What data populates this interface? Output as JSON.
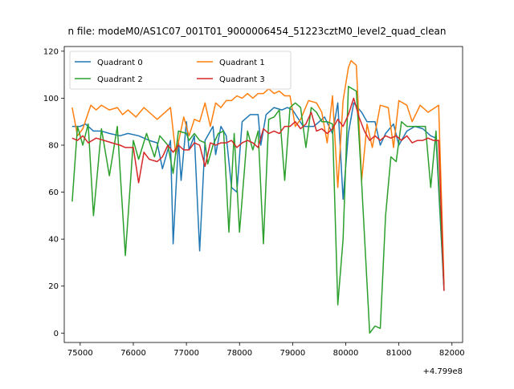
{
  "chart_data": {
    "type": "line",
    "title": "n file: modeM0/AS1C07_001T01_9000006454_51223cztM0_level2_quad_clean",
    "xlabel": "",
    "ylabel": "",
    "x_offset_label": "+4.799e8",
    "xlim": [
      74700,
      82200
    ],
    "ylim": [
      -4,
      122
    ],
    "x_ticks": [
      75000,
      76000,
      77000,
      78000,
      79000,
      80000,
      81000,
      82000
    ],
    "x_tick_labels": [
      "75000",
      "76000",
      "77000",
      "78000",
      "79000",
      "80000",
      "81000",
      "82000"
    ],
    "y_ticks": [
      0,
      20,
      40,
      60,
      80,
      100,
      120
    ],
    "y_tick_labels": [
      "0",
      "20",
      "40",
      "60",
      "80",
      "100",
      "120"
    ],
    "grid": false,
    "legend_placement": "top-left",
    "legend_columns": 2,
    "series": [
      {
        "name": "Quadrant 0",
        "color": "#1f77b4",
        "points": [
          [
            74850,
            88
          ],
          [
            75000,
            88
          ],
          [
            75100,
            89
          ],
          [
            75250,
            86
          ],
          [
            75400,
            86
          ],
          [
            75550,
            85
          ],
          [
            75750,
            84
          ],
          [
            75900,
            85
          ],
          [
            76100,
            84
          ],
          [
            76300,
            82
          ],
          [
            76450,
            81
          ],
          [
            76550,
            70
          ],
          [
            76700,
            82
          ],
          [
            76750,
            38
          ],
          [
            76850,
            82
          ],
          [
            76900,
            65
          ],
          [
            77000,
            90
          ],
          [
            77050,
            78
          ],
          [
            77150,
            84
          ],
          [
            77250,
            35
          ],
          [
            77350,
            82
          ],
          [
            77500,
            88
          ],
          [
            77550,
            76
          ],
          [
            77650,
            88
          ],
          [
            77750,
            84
          ],
          [
            77850,
            62
          ],
          [
            77950,
            60
          ],
          [
            78050,
            90
          ],
          [
            78200,
            93
          ],
          [
            78350,
            93
          ],
          [
            78400,
            80
          ],
          [
            78500,
            93
          ],
          [
            78650,
            96
          ],
          [
            78800,
            95
          ],
          [
            78900,
            96
          ],
          [
            79000,
            95
          ],
          [
            79200,
            88
          ],
          [
            79400,
            88
          ],
          [
            79600,
            92
          ],
          [
            79750,
            85
          ],
          [
            79850,
            98
          ],
          [
            79950,
            57
          ],
          [
            80050,
            85
          ],
          [
            80150,
            98
          ],
          [
            80300,
            94
          ],
          [
            80400,
            90
          ],
          [
            80550,
            90
          ],
          [
            80650,
            80
          ],
          [
            80750,
            85
          ],
          [
            80900,
            89
          ],
          [
            81000,
            80
          ],
          [
            81150,
            86
          ],
          [
            81300,
            88
          ],
          [
            81450,
            87
          ],
          [
            81600,
            84
          ],
          [
            81700,
            83
          ],
          [
            81850,
            18
          ]
        ]
      },
      {
        "name": "Quadrant 1",
        "color": "#ff7f0e",
        "points": [
          [
            74850,
            96
          ],
          [
            74950,
            84
          ],
          [
            75050,
            87
          ],
          [
            75200,
            97
          ],
          [
            75300,
            95
          ],
          [
            75400,
            97
          ],
          [
            75550,
            95
          ],
          [
            75700,
            96
          ],
          [
            75800,
            93
          ],
          [
            75900,
            95
          ],
          [
            76050,
            92
          ],
          [
            76200,
            96
          ],
          [
            76300,
            94
          ],
          [
            76450,
            91
          ],
          [
            76550,
            93
          ],
          [
            76700,
            96
          ],
          [
            76800,
            76
          ],
          [
            76950,
            92
          ],
          [
            77050,
            84
          ],
          [
            77150,
            91
          ],
          [
            77250,
            90
          ],
          [
            77350,
            98
          ],
          [
            77450,
            88
          ],
          [
            77550,
            98
          ],
          [
            77650,
            96
          ],
          [
            77750,
            99
          ],
          [
            77850,
            99
          ],
          [
            77950,
            101
          ],
          [
            78050,
            100
          ],
          [
            78150,
            102
          ],
          [
            78250,
            100
          ],
          [
            78350,
            102
          ],
          [
            78450,
            102
          ],
          [
            78550,
            104
          ],
          [
            78650,
            102
          ],
          [
            78750,
            103
          ],
          [
            78850,
            101
          ],
          [
            78950,
            101
          ],
          [
            79050,
            88
          ],
          [
            79150,
            91
          ],
          [
            79300,
            99
          ],
          [
            79450,
            98
          ],
          [
            79550,
            94
          ],
          [
            79650,
            81
          ],
          [
            79750,
            101
          ],
          [
            79850,
            62
          ],
          [
            79950,
            99
          ],
          [
            80050,
            113
          ],
          [
            80100,
            116
          ],
          [
            80200,
            114
          ],
          [
            80300,
            65
          ],
          [
            80400,
            89
          ],
          [
            80500,
            79
          ],
          [
            80650,
            97
          ],
          [
            80800,
            96
          ],
          [
            80900,
            79
          ],
          [
            81000,
            99
          ],
          [
            81150,
            97
          ],
          [
            81250,
            90
          ],
          [
            81400,
            97
          ],
          [
            81550,
            94
          ],
          [
            81750,
            97
          ],
          [
            81850,
            21
          ]
        ]
      },
      {
        "name": "Quadrant 2",
        "color": "#2ca02c",
        "points": [
          [
            74850,
            56
          ],
          [
            74950,
            88
          ],
          [
            75050,
            80
          ],
          [
            75150,
            89
          ],
          [
            75250,
            50
          ],
          [
            75400,
            87
          ],
          [
            75550,
            67
          ],
          [
            75700,
            88
          ],
          [
            75850,
            33
          ],
          [
            76000,
            82
          ],
          [
            76100,
            74
          ],
          [
            76250,
            85
          ],
          [
            76400,
            75
          ],
          [
            76500,
            84
          ],
          [
            76650,
            80
          ],
          [
            76750,
            68
          ],
          [
            76850,
            86
          ],
          [
            77000,
            85
          ],
          [
            77050,
            82
          ],
          [
            77150,
            85
          ],
          [
            77250,
            82
          ],
          [
            77350,
            81
          ],
          [
            77400,
            72
          ],
          [
            77500,
            80
          ],
          [
            77600,
            85
          ],
          [
            77700,
            86
          ],
          [
            77800,
            43
          ],
          [
            77900,
            85
          ],
          [
            78000,
            43
          ],
          [
            78150,
            86
          ],
          [
            78250,
            78
          ],
          [
            78350,
            86
          ],
          [
            78450,
            38
          ],
          [
            78550,
            91
          ],
          [
            78650,
            92
          ],
          [
            78750,
            95
          ],
          [
            78850,
            65
          ],
          [
            78950,
            96
          ],
          [
            79050,
            98
          ],
          [
            79150,
            96
          ],
          [
            79250,
            79
          ],
          [
            79350,
            96
          ],
          [
            79450,
            94
          ],
          [
            79550,
            90
          ],
          [
            79650,
            90
          ],
          [
            79750,
            89
          ],
          [
            79850,
            12
          ],
          [
            79950,
            40
          ],
          [
            80050,
            105
          ],
          [
            80200,
            103
          ],
          [
            80300,
            64
          ],
          [
            80450,
            0
          ],
          [
            80550,
            3
          ],
          [
            80650,
            2
          ],
          [
            80750,
            50
          ],
          [
            80850,
            75
          ],
          [
            80950,
            73
          ],
          [
            81050,
            90
          ],
          [
            81150,
            88
          ],
          [
            81300,
            88
          ],
          [
            81500,
            88
          ],
          [
            81600,
            62
          ],
          [
            81700,
            86
          ],
          [
            81850,
            19
          ]
        ]
      },
      {
        "name": "Quadrant 3",
        "color": "#d62728",
        "points": [
          [
            74850,
            83
          ],
          [
            74950,
            82
          ],
          [
            75050,
            84
          ],
          [
            75150,
            81
          ],
          [
            75300,
            83
          ],
          [
            75450,
            82
          ],
          [
            75600,
            81
          ],
          [
            75750,
            80
          ],
          [
            75850,
            79
          ],
          [
            76000,
            79
          ],
          [
            76100,
            64
          ],
          [
            76200,
            77
          ],
          [
            76300,
            74
          ],
          [
            76450,
            73
          ],
          [
            76550,
            75
          ],
          [
            76650,
            80
          ],
          [
            76750,
            77
          ],
          [
            76850,
            80
          ],
          [
            76950,
            78
          ],
          [
            77050,
            78
          ],
          [
            77150,
            81
          ],
          [
            77250,
            80
          ],
          [
            77350,
            71
          ],
          [
            77450,
            81
          ],
          [
            77550,
            80
          ],
          [
            77650,
            81
          ],
          [
            77750,
            81
          ],
          [
            77850,
            82
          ],
          [
            77950,
            79
          ],
          [
            78050,
            81
          ],
          [
            78150,
            82
          ],
          [
            78250,
            81
          ],
          [
            78350,
            79
          ],
          [
            78450,
            87
          ],
          [
            78550,
            85
          ],
          [
            78650,
            86
          ],
          [
            78750,
            85
          ],
          [
            78850,
            88
          ],
          [
            78950,
            88
          ],
          [
            79050,
            90
          ],
          [
            79150,
            87
          ],
          [
            79250,
            89
          ],
          [
            79350,
            94
          ],
          [
            79450,
            86
          ],
          [
            79550,
            87
          ],
          [
            79650,
            85
          ],
          [
            79750,
            87
          ],
          [
            79850,
            91
          ],
          [
            79950,
            88
          ],
          [
            80050,
            93
          ],
          [
            80150,
            100
          ],
          [
            80250,
            92
          ],
          [
            80350,
            86
          ],
          [
            80450,
            82
          ],
          [
            80550,
            84
          ],
          [
            80650,
            82
          ],
          [
            80750,
            84
          ],
          [
            80850,
            83
          ],
          [
            80950,
            84
          ],
          [
            81050,
            82
          ],
          [
            81150,
            84
          ],
          [
            81250,
            81
          ],
          [
            81350,
            82
          ],
          [
            81450,
            82
          ],
          [
            81550,
            83
          ],
          [
            81650,
            82
          ],
          [
            81750,
            82
          ],
          [
            81850,
            18
          ]
        ]
      }
    ]
  }
}
